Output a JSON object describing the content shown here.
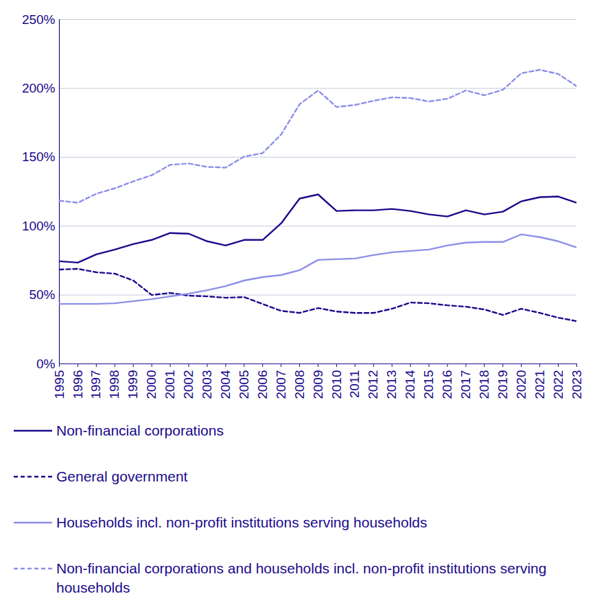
{
  "chart_data": {
    "type": "line",
    "x": [
      1995,
      1996,
      1997,
      1998,
      1999,
      2000,
      2001,
      2002,
      2003,
      2004,
      2005,
      2006,
      2007,
      2008,
      2009,
      2010,
      2011,
      2012,
      2013,
      2014,
      2015,
      2016,
      2017,
      2018,
      2019,
      2020,
      2021,
      2022,
      2023
    ],
    "xlim": [
      1995,
      2023
    ],
    "xticks": [
      1995,
      1996,
      1997,
      1998,
      1999,
      2000,
      2001,
      2002,
      2003,
      2004,
      2005,
      2006,
      2007,
      2008,
      2009,
      2010,
      2011,
      2012,
      2013,
      2014,
      2015,
      2016,
      2017,
      2018,
      2019,
      2020,
      2021,
      2022,
      2023
    ],
    "ylim": [
      0,
      250
    ],
    "yticks": [
      {
        "value": 0,
        "label": "0%"
      },
      {
        "value": 50,
        "label": "50%"
      },
      {
        "value": 100,
        "label": "100%"
      },
      {
        "value": 150,
        "label": "150%"
      },
      {
        "value": 200,
        "label": "200%"
      },
      {
        "value": 250,
        "label": "250%"
      }
    ],
    "grid": true,
    "legend": "bottom",
    "series": [
      {
        "name": "Non-financial corporations",
        "color": "#1a0a8c",
        "line_style": "solid",
        "values": [
          74.5,
          73.5,
          79.5,
          83,
          87,
          90,
          95,
          94.5,
          89,
          86,
          90,
          90,
          102,
          120,
          123,
          111,
          111.5,
          111.5,
          112.5,
          111,
          108.5,
          107,
          111.5,
          108.5,
          110.5,
          118,
          121,
          121.5,
          117
        ]
      },
      {
        "name": "General government",
        "color": "#1a0a8c",
        "line_style": "dashed",
        "values": [
          68.5,
          69,
          66.5,
          65.5,
          60.5,
          50,
          51.5,
          49.5,
          49,
          48,
          48.5,
          43.5,
          38.5,
          37,
          40.5,
          38,
          37,
          37,
          40,
          44.5,
          44,
          42.5,
          41.5,
          39.5,
          35.5,
          40,
          37,
          33.5,
          31
        ]
      },
      {
        "name": "Households incl. non-profit institutions serving households",
        "color": "#8c8fe8",
        "line_style": "solid",
        "values": [
          43.5,
          43.5,
          43.5,
          44,
          45.5,
          47,
          49,
          51,
          53.5,
          56.5,
          60.5,
          63,
          64.5,
          68,
          75.5,
          76,
          76.5,
          79,
          81,
          82,
          83,
          86,
          88,
          88.5,
          88.5,
          94,
          92,
          89,
          84.5
        ]
      },
      {
        "name": "Non-financial corporations and households incl. non-profit institutions serving households",
        "color": "#8c8fe8",
        "line_style": "dashed",
        "values": [
          118.5,
          117,
          123.5,
          127.5,
          132.5,
          137,
          144.5,
          145.5,
          143,
          142.5,
          150.5,
          153,
          166.5,
          188.5,
          198.5,
          186.5,
          188,
          191,
          193.5,
          193,
          190.5,
          192.5,
          198.5,
          195,
          199,
          211,
          213.5,
          210.5,
          201.5
        ]
      }
    ]
  }
}
